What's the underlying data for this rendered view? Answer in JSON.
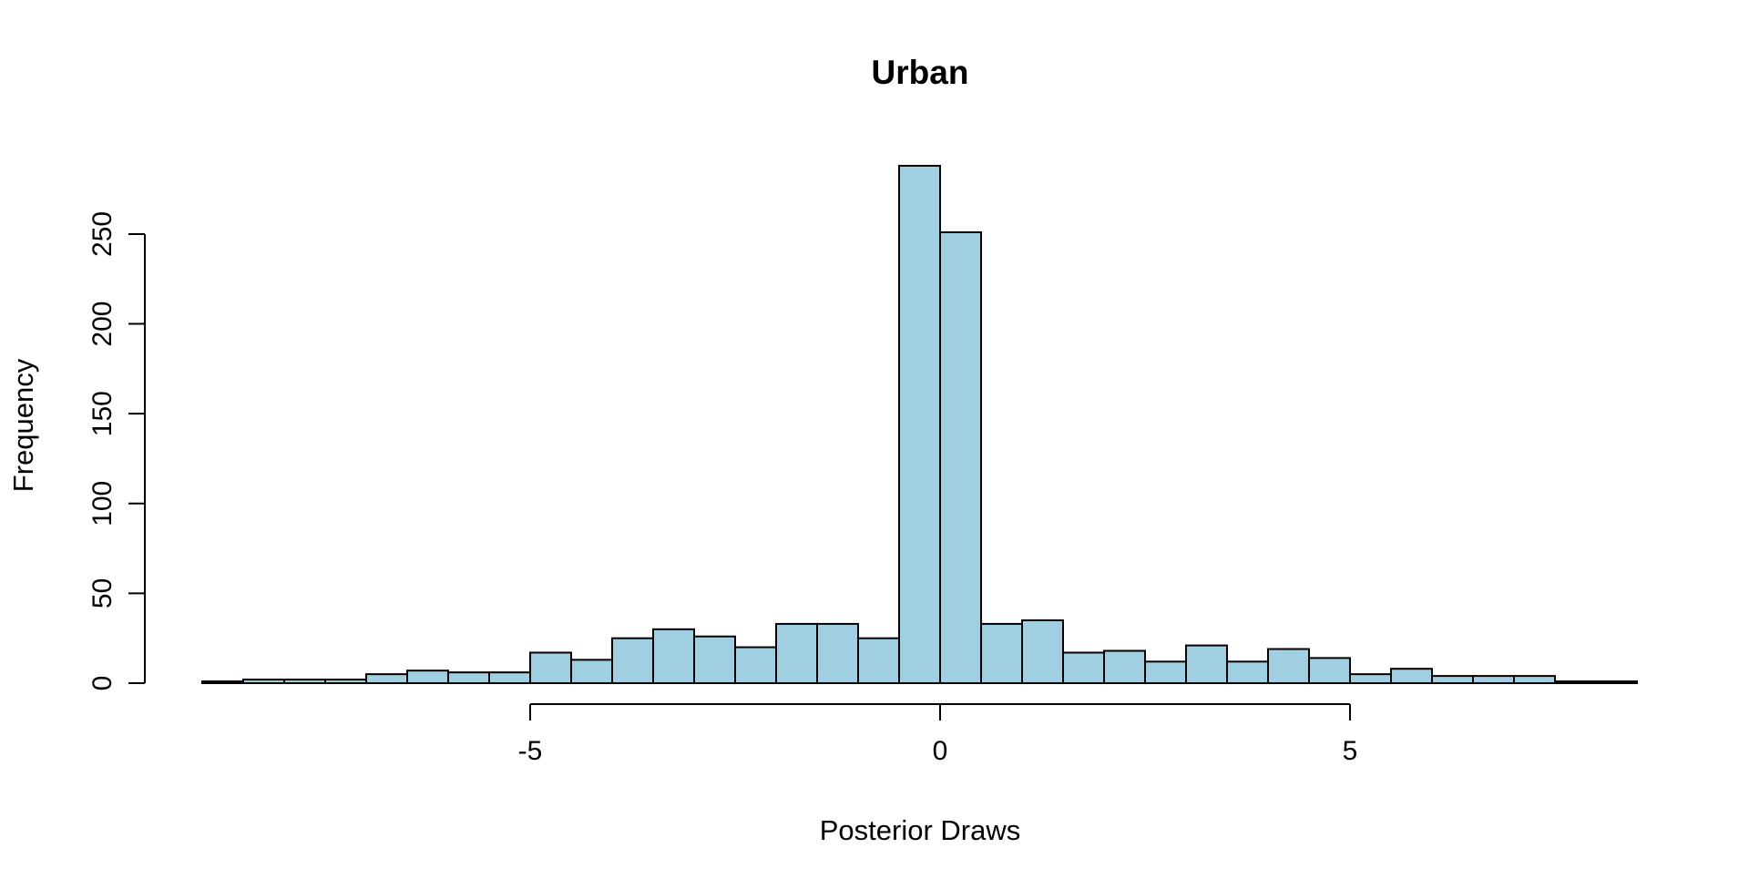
{
  "chart_data": {
    "type": "bar",
    "subtype": "histogram",
    "title": "Urban",
    "xlabel": "Posterior Draws",
    "ylabel": "Frequency",
    "bin_width": 0.5,
    "bins_x0": [
      -9.0,
      -8.5,
      -8.0,
      -7.5,
      -7.0,
      -6.5,
      -6.0,
      -5.5,
      -5.0,
      -4.5,
      -4.0,
      -3.5,
      -3.0,
      -2.5,
      -2.0,
      -1.5,
      -1.0,
      -0.5,
      0.0,
      0.5,
      1.0,
      1.5,
      2.0,
      2.5,
      3.0,
      3.5,
      4.0,
      4.5,
      5.0,
      5.5,
      6.0,
      6.5,
      7.0,
      7.5,
      8.0
    ],
    "values": [
      1,
      2,
      2,
      2,
      5,
      7,
      6,
      6,
      17,
      13,
      25,
      30,
      26,
      20,
      33,
      33,
      25,
      288,
      251,
      33,
      35,
      17,
      18,
      12,
      21,
      12,
      19,
      14,
      5,
      8,
      4,
      4,
      4,
      1,
      1
    ],
    "xlim": [
      -9.0,
      8.5
    ],
    "ylim": [
      0,
      288
    ],
    "x_ticks": [
      -5,
      0,
      5
    ],
    "x_tick_labels": [
      "-5",
      "0",
      "5"
    ],
    "y_ticks": [
      0,
      50,
      100,
      150,
      200,
      250
    ],
    "y_tick_labels": [
      "0",
      "50",
      "100",
      "150",
      "200",
      "250"
    ],
    "bar_color": "#a0cfe1",
    "edge_color": "#000000"
  }
}
